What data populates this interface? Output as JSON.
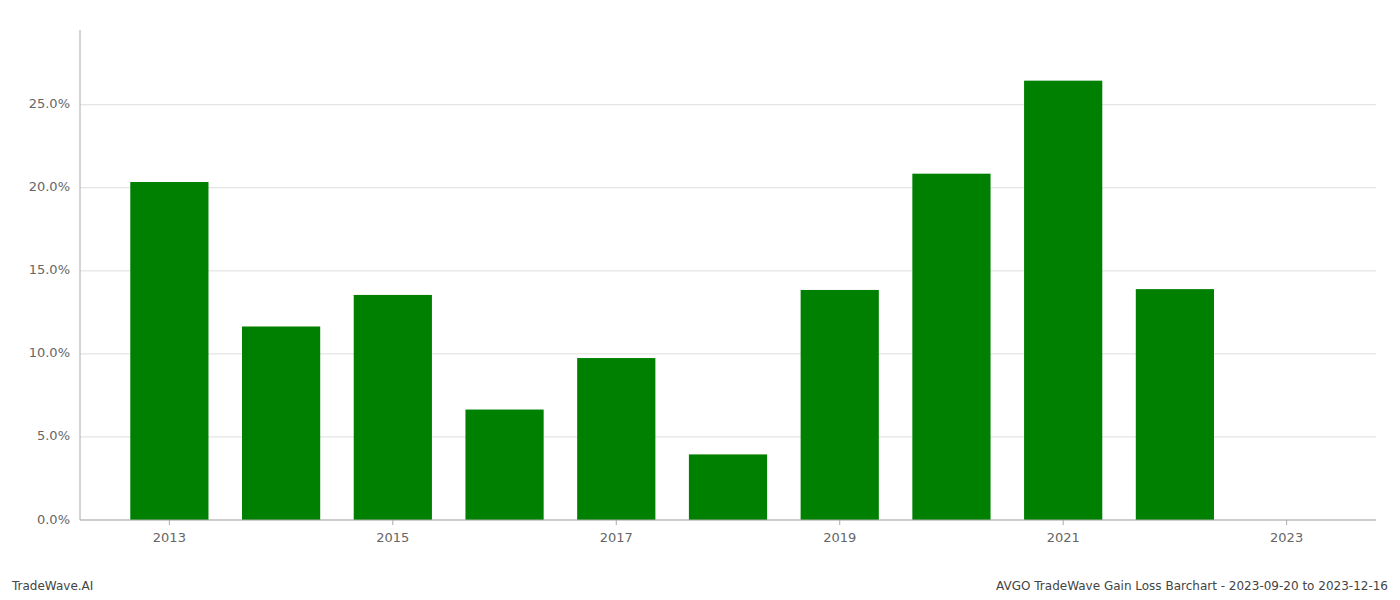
{
  "chart_data": {
    "type": "bar",
    "x": [
      2013,
      2014,
      2015,
      2016,
      2017,
      2018,
      2019,
      2020,
      2021,
      2022
    ],
    "values": [
      0.2035,
      0.1165,
      0.1355,
      0.0665,
      0.0975,
      0.0395,
      0.1385,
      0.2085,
      0.2645,
      0.139
    ],
    "color": "#008000",
    "xlim": [
      2012.2,
      2023.8
    ],
    "xticks": [
      2013,
      2015,
      2017,
      2019,
      2021,
      2023
    ],
    "ylim": [
      0,
      0.295
    ],
    "yticks": [
      {
        "value": 0.0,
        "label": "0.0%"
      },
      {
        "value": 0.05,
        "label": "5.0%"
      },
      {
        "value": 0.1,
        "label": "10.0%"
      },
      {
        "value": 0.15,
        "label": "15.0%"
      },
      {
        "value": 0.2,
        "label": "20.0%"
      },
      {
        "value": 0.25,
        "label": "25.0%"
      }
    ],
    "grid": true,
    "annotations": [
      "TradeWave.AI",
      "AVGO TradeWave Gain Loss Barchart - 2023-09-20 to 2023-12-16"
    ]
  }
}
